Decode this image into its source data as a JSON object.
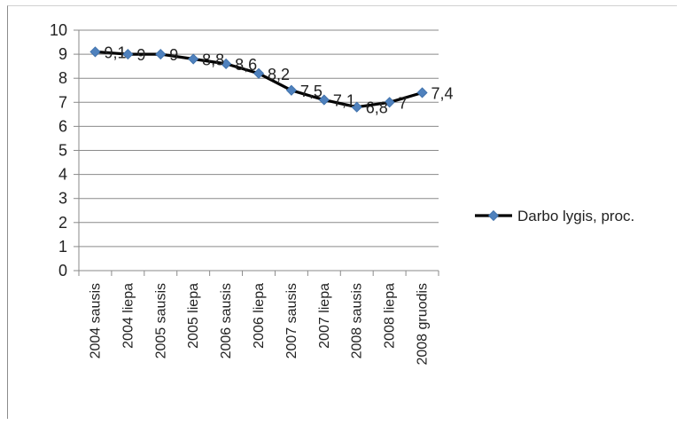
{
  "chart_data": {
    "type": "line",
    "categories": [
      "2004 sausis",
      "2004 liepa",
      "2005 sausis",
      "2005 liepa",
      "2006 sausis",
      "2006 liepa",
      "2007 sausis",
      "2007 liepa",
      "2008 sausis",
      "2008 liepa",
      "2008 gruodis"
    ],
    "series": [
      {
        "name": "Darbo lygis, proc.",
        "values": [
          9.1,
          9.0,
          9.0,
          8.8,
          8.6,
          8.2,
          7.5,
          7.1,
          6.8,
          7.0,
          7.4
        ],
        "labels": [
          "9,1",
          "9",
          "9",
          "8,8",
          "8,6",
          "8,2",
          "7,5",
          "7,1",
          "6,8",
          "7",
          "7,4"
        ],
        "line_color": "#000000",
        "marker_color": "#4f81bd"
      }
    ],
    "y_ticks": [
      "0",
      "1",
      "2",
      "3",
      "4",
      "5",
      "6",
      "7",
      "8",
      "9",
      "10"
    ],
    "ylim": [
      0,
      10
    ],
    "grid": true,
    "legend": "right"
  }
}
